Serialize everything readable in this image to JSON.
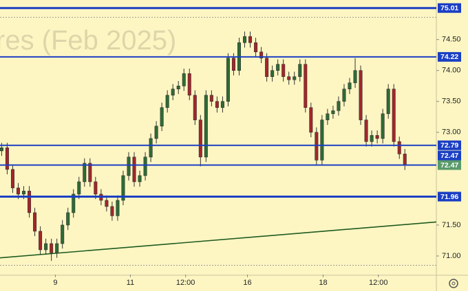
{
  "chart_data": {
    "type": "candlestick",
    "watermark": "res (Feb 2025)",
    "xlim": [
      -0.3,
      78.7
    ],
    "ylim": [
      70.7,
      75.14
    ],
    "xticks": [
      {
        "value": 9.72,
        "label": "9"
      },
      {
        "value": 23.3,
        "label": "11"
      },
      {
        "value": 33.3,
        "label": "12:00"
      },
      {
        "value": 44.5,
        "label": "16"
      },
      {
        "value": 58.2,
        "label": "18"
      },
      {
        "value": 68.2,
        "label": "12:00"
      }
    ],
    "yticks": [
      {
        "value": 74.5,
        "label": "74.50"
      },
      {
        "value": 74,
        "label": "74.00"
      },
      {
        "value": 73.5,
        "label": "73.50"
      },
      {
        "value": 73,
        "label": "73.00"
      },
      {
        "value": 71.5,
        "label": "71.50"
      },
      {
        "value": 71,
        "label": "71.00"
      }
    ],
    "up_color": "#2e6b34",
    "down_color": "#a3262a",
    "open": [
      72.7,
      72.75,
      72.4,
      72.1,
      72.0,
      72.05,
      71.7,
      71.4,
      71.1,
      71.2,
      71.05,
      71.2,
      71.5,
      71.7,
      72.0,
      72.2,
      72.5,
      72.2,
      72.0,
      71.9,
      71.8,
      71.65,
      71.9,
      72.3,
      72.6,
      72.2,
      72.3,
      72.6,
      72.9,
      73.1,
      73.4,
      73.6,
      73.7,
      73.75,
      73.95,
      73.6,
      73.2,
      72.6,
      73.6,
      73.5,
      73.4,
      73.5,
      74.2,
      74.0,
      74.45,
      74.55,
      74.45,
      74.3,
      74.2,
      73.9,
      74.0,
      74.1,
      73.9,
      73.85,
      73.9,
      74.1,
      73.4,
      73.0,
      72.55,
      73.2,
      73.3,
      73.35,
      73.5,
      73.7,
      73.8,
      74.0,
      73.2,
      72.85,
      72.95,
      72.9,
      73.3,
      73.7,
      72.85,
      72.65
    ],
    "high": [
      72.83,
      72.83,
      72.48,
      72.18,
      72.13,
      72.13,
      71.78,
      71.48,
      71.28,
      71.28,
      71.28,
      71.58,
      71.78,
      72.08,
      72.28,
      72.58,
      72.58,
      72.28,
      72.08,
      71.98,
      71.88,
      71.98,
      72.38,
      72.68,
      72.68,
      72.38,
      72.68,
      72.98,
      73.18,
      73.48,
      73.68,
      73.78,
      73.83,
      74.03,
      74.03,
      73.68,
      73.28,
      73.68,
      73.68,
      73.58,
      73.58,
      74.28,
      74.28,
      74.53,
      74.63,
      74.63,
      74.53,
      74.38,
      74.28,
      74.08,
      74.18,
      74.18,
      73.98,
      73.98,
      74.18,
      74.18,
      73.48,
      73.08,
      73.28,
      73.38,
      73.43,
      73.58,
      73.78,
      73.88,
      74.2,
      74.08,
      73.28,
      73.03,
      73.03,
      73.38,
      73.78,
      73.78,
      72.93,
      72.73
    ],
    "low": [
      72.62,
      72.32,
      72.02,
      71.92,
      71.92,
      71.62,
      71.32,
      71.02,
      71.02,
      70.92,
      70.97,
      71.12,
      71.42,
      71.62,
      71.92,
      72.12,
      72.12,
      71.92,
      71.82,
      71.72,
      71.57,
      71.57,
      71.82,
      72.22,
      72.12,
      72.12,
      72.22,
      72.52,
      72.82,
      73.02,
      73.32,
      73.52,
      73.62,
      73.67,
      73.52,
      73.12,
      72.45,
      72.52,
      73.42,
      73.32,
      73.32,
      73.42,
      73.92,
      73.92,
      74.37,
      74.37,
      74.22,
      74.12,
      73.82,
      73.82,
      73.92,
      73.82,
      73.77,
      73.77,
      73.82,
      73.32,
      72.92,
      72.47,
      72.47,
      73.12,
      73.22,
      73.27,
      73.42,
      73.62,
      73.72,
      73.12,
      72.77,
      72.77,
      72.82,
      72.82,
      73.22,
      72.77,
      72.57,
      72.39
    ],
    "close": [
      72.75,
      72.4,
      72.1,
      72.0,
      72.05,
      71.7,
      71.4,
      71.1,
      71.2,
      71.05,
      71.2,
      71.5,
      71.7,
      72.0,
      72.2,
      72.5,
      72.2,
      72.0,
      71.9,
      71.8,
      71.65,
      71.9,
      72.3,
      72.6,
      72.2,
      72.3,
      72.6,
      72.9,
      73.1,
      73.4,
      73.6,
      73.7,
      73.75,
      73.95,
      73.6,
      73.2,
      72.6,
      73.6,
      73.5,
      73.4,
      73.5,
      74.2,
      74.0,
      74.45,
      74.55,
      74.45,
      74.3,
      74.2,
      73.9,
      74.0,
      74.1,
      73.9,
      73.85,
      73.9,
      74.1,
      73.4,
      73.0,
      72.55,
      73.2,
      73.3,
      73.35,
      73.5,
      73.7,
      73.8,
      74.0,
      73.2,
      72.85,
      72.95,
      72.9,
      73.3,
      73.7,
      72.85,
      72.65,
      72.47
    ],
    "levels": [
      {
        "value": 75.01,
        "color": "#1b3fc4",
        "width": 3
      },
      {
        "value": 74.22,
        "color": "#1b3fc4",
        "width": 2
      },
      {
        "value": 72.79,
        "color": "#1b3fc4",
        "width": 2
      },
      {
        "value": 72.47,
        "color": "#1b3fc4",
        "width": 2
      },
      {
        "value": 71.96,
        "color": "#1b3fc4",
        "width": 3
      }
    ],
    "last_price": {
      "value": 72.47,
      "color": "#5a9a6a"
    },
    "dashed_levels": [
      74.86,
      70.85
    ],
    "trendline": {
      "color": "#1f5a1f",
      "x": [
        -0.3,
        78.7
      ],
      "y": [
        70.97,
        71.55
      ]
    }
  }
}
